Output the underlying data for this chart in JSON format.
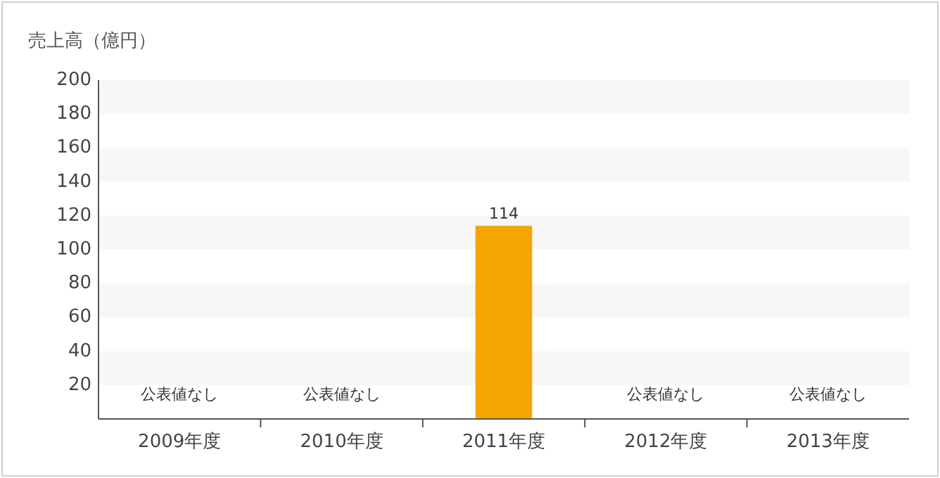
{
  "chart_data": {
    "type": "bar",
    "ylabel": "売上高（億円）",
    "categories": [
      "2009年度",
      "2010年度",
      "2011年度",
      "2012年度",
      "2013年度"
    ],
    "values": [
      null,
      null,
      114,
      null,
      null
    ],
    "color": "#f5a500",
    "ylim": [
      0,
      200
    ],
    "yticks": [
      20,
      40,
      60,
      80,
      100,
      120,
      140,
      160,
      180,
      200
    ],
    "data_labels": true,
    "bands": [
      {
        "axis": "y",
        "from": 20,
        "to": 40,
        "color": "#f7f7f7"
      },
      {
        "axis": "y",
        "from": 60,
        "to": 80,
        "color": "#f7f7f7"
      },
      {
        "axis": "y",
        "from": 100,
        "to": 120,
        "color": "#f7f7f7"
      },
      {
        "axis": "y",
        "from": 140,
        "to": 160,
        "color": "#f7f7f7"
      },
      {
        "axis": "y",
        "from": 180,
        "to": 200,
        "color": "#f7f7f7"
      }
    ],
    "annotations": [
      "公表値なし",
      "公表値なし",
      "公表値なし",
      "公表値なし"
    ]
  }
}
